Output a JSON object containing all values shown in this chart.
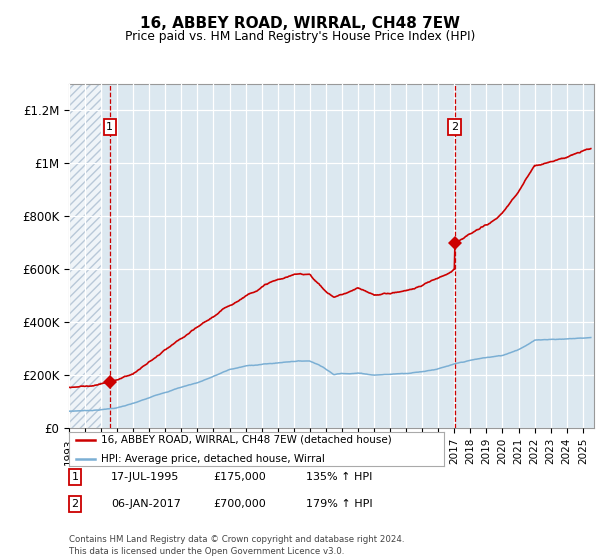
{
  "title": "16, ABBEY ROAD, WIRRAL, CH48 7EW",
  "subtitle": "Price paid vs. HM Land Registry's House Price Index (HPI)",
  "ylim": [
    0,
    1300000
  ],
  "yticks": [
    0,
    200000,
    400000,
    600000,
    800000,
    1000000,
    1200000
  ],
  "ytick_labels": [
    "£0",
    "£200K",
    "£400K",
    "£600K",
    "£800K",
    "£1M",
    "£1.2M"
  ],
  "sale1_date": "17-JUL-1995",
  "sale1_price": 175000,
  "sale1_hpi": "135% ↑ HPI",
  "sale1_x": 1995.54,
  "sale2_date": "06-JAN-2017",
  "sale2_price": 700000,
  "sale2_hpi": "179% ↑ HPI",
  "sale2_x": 2017.02,
  "legend_entry1": "16, ABBEY ROAD, WIRRAL, CH48 7EW (detached house)",
  "legend_entry2": "HPI: Average price, detached house, Wirral",
  "footnote": "Contains HM Land Registry data © Crown copyright and database right 2024.\nThis data is licensed under the Open Government Licence v3.0.",
  "line_color": "#cc0000",
  "hpi_color": "#7bafd4",
  "plot_bg_color": "#dce8f0",
  "hatch_color": "#b8c8d8",
  "xmin": 1993.0,
  "xmax": 2025.7,
  "hatch_xmax": 1995.0
}
